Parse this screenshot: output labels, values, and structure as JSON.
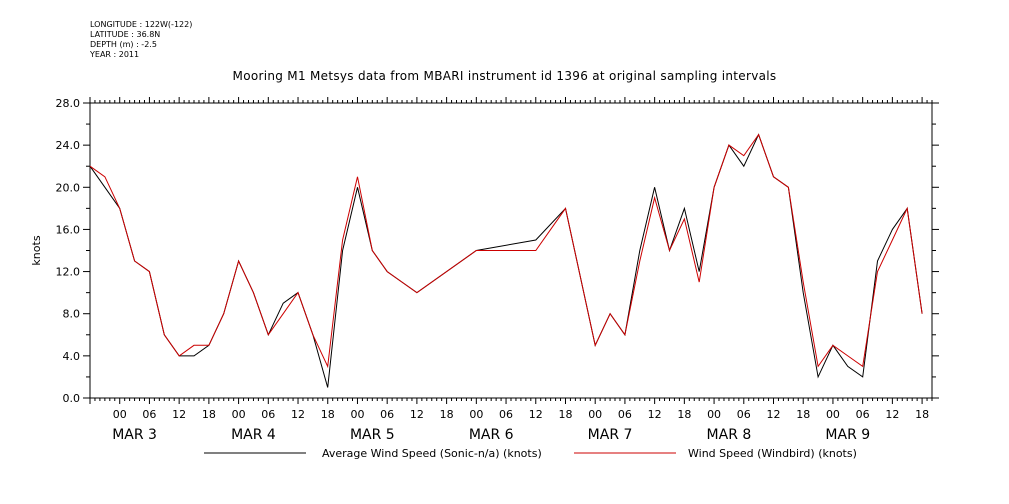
{
  "header": {
    "longitude": "LONGITUDE : 122W(-122)",
    "latitude": "LATITUDE : 36.8N",
    "depth": "DEPTH (m) : -2.5",
    "year": "YEAR : 2011"
  },
  "chart_data": {
    "type": "line",
    "title": "Mooring M1 Metsys data from MBARI instrument id 1396 at original sampling intervals",
    "ylabel": "knots",
    "xlabel": "",
    "ylim": [
      0,
      28
    ],
    "yticks": [
      "0.0",
      "4.0",
      "8.0",
      "12.0",
      "16.0",
      "20.0",
      "24.0",
      "28.0"
    ],
    "xlim_hours": [
      -6,
      164
    ],
    "hour_ticks": [
      "00",
      "06",
      "12",
      "18",
      "00",
      "06",
      "12",
      "18",
      "00",
      "06",
      "12",
      "18",
      "00",
      "06",
      "12",
      "18",
      "00",
      "06",
      "12",
      "18",
      "00",
      "06",
      "12",
      "18",
      "00",
      "06",
      "12",
      "18"
    ],
    "days": [
      "MAR 3",
      "MAR 4",
      "MAR 5",
      "MAR 6",
      "MAR 7",
      "MAR 8",
      "MAR 9"
    ],
    "grid": false,
    "legend_position": "bottom",
    "series": [
      {
        "name": "Average Wind Speed (Sonic-n/a) (knots)",
        "color": "#000000",
        "x": [
          -6,
          -3,
          0,
          3,
          6,
          9,
          12,
          15,
          18,
          21,
          24,
          27,
          30,
          33,
          36,
          39,
          42,
          45,
          48,
          51,
          54,
          57,
          60,
          72,
          84,
          90,
          96,
          99,
          102,
          105,
          108,
          111,
          114,
          117,
          120,
          123,
          126,
          129,
          132,
          135,
          138,
          141,
          144,
          147,
          150,
          153,
          156,
          159,
          162
        ],
        "y": [
          22,
          20,
          18,
          13,
          12,
          6,
          4,
          4,
          5,
          8,
          13,
          10,
          6,
          9,
          10,
          6,
          1,
          14,
          20,
          14,
          12,
          11,
          10,
          14,
          15,
          18,
          5,
          8,
          6,
          14,
          20,
          14,
          18,
          12,
          20,
          24,
          22,
          25,
          21,
          20,
          10,
          2,
          5,
          3,
          2,
          13,
          16,
          18,
          8
        ]
      },
      {
        "name": "Wind Speed (Windbird) (knots)",
        "color": "#cc0000",
        "x": [
          -6,
          -3,
          0,
          3,
          6,
          9,
          12,
          15,
          18,
          21,
          24,
          27,
          30,
          33,
          36,
          39,
          42,
          45,
          48,
          51,
          54,
          57,
          60,
          72,
          84,
          90,
          96,
          99,
          102,
          105,
          108,
          111,
          114,
          117,
          120,
          123,
          126,
          129,
          132,
          135,
          138,
          141,
          144,
          147,
          150,
          153,
          156,
          159,
          162
        ],
        "y": [
          22,
          21,
          18,
          13,
          12,
          6,
          4,
          5,
          5,
          8,
          13,
          10,
          6,
          8,
          10,
          6,
          3,
          15,
          21,
          14,
          12,
          11,
          10,
          14,
          14,
          18,
          5,
          8,
          6,
          13,
          19,
          14,
          17,
          11,
          20,
          24,
          23,
          25,
          21,
          20,
          11,
          3,
          5,
          4,
          3,
          12,
          15,
          18,
          8
        ]
      }
    ]
  }
}
